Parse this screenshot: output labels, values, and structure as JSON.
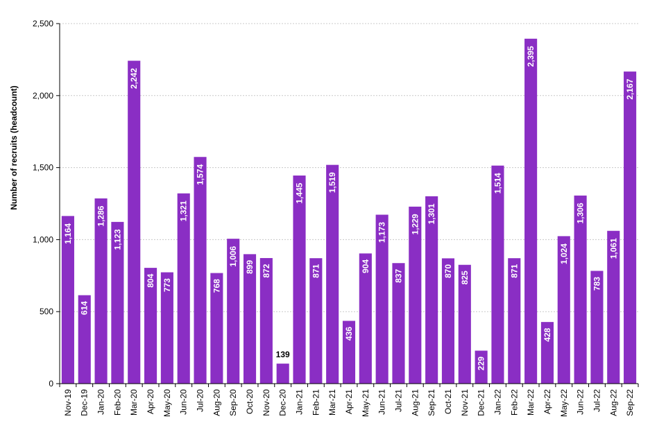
{
  "chart_data": {
    "type": "bar",
    "title": "",
    "xlabel": "",
    "ylabel": "Number of recruits (headcount)",
    "ylim": [
      0,
      2500
    ],
    "yticks": [
      0,
      500,
      1000,
      1500,
      2000,
      2500
    ],
    "ytick_labels": [
      "0",
      "500",
      "1,000",
      "1,500",
      "2,000",
      "2,500"
    ],
    "grid": true,
    "bar_color": "#8a2ec4",
    "categories": [
      "Nov-19",
      "Dec-19",
      "Jan-20",
      "Feb-20",
      "Mar-20",
      "Apr-20",
      "May-20",
      "Jun-20",
      "Jul-20",
      "Aug-20",
      "Sep-20",
      "Oct-20",
      "Nov-20",
      "Dec-20",
      "Jan-21",
      "Feb-21",
      "Mar-21",
      "Apr-21",
      "May-21",
      "Jun-21",
      "Jul-21",
      "Aug-21",
      "Sep-21",
      "Oct-21",
      "Nov-21",
      "Dec-21",
      "Jan-22",
      "Feb-22",
      "Mar-22",
      "Apr-22",
      "May-22",
      "Jun-22",
      "Jul-22",
      "Aug-22",
      "Sep-22"
    ],
    "values": [
      1164,
      614,
      1286,
      1123,
      2242,
      804,
      773,
      1321,
      1574,
      768,
      1006,
      899,
      872,
      139,
      1445,
      871,
      1519,
      436,
      904,
      1173,
      837,
      1229,
      1301,
      870,
      825,
      229,
      1514,
      871,
      2395,
      428,
      1024,
      1306,
      783,
      1061,
      2167
    ],
    "value_labels": [
      "1,164",
      "614",
      "1,286",
      "1,123",
      "2,242",
      "804",
      "773",
      "1,321",
      "1,574",
      "768",
      "1,006",
      "899",
      "872",
      "139",
      "1,445",
      "871",
      "1,519",
      "436",
      "904",
      "1,173",
      "837",
      "1,229",
      "1,301",
      "870",
      "825",
      "229",
      "1,514",
      "871",
      "2,395",
      "428",
      "1,024",
      "1,306",
      "783",
      "1,061",
      "2,167"
    ]
  }
}
